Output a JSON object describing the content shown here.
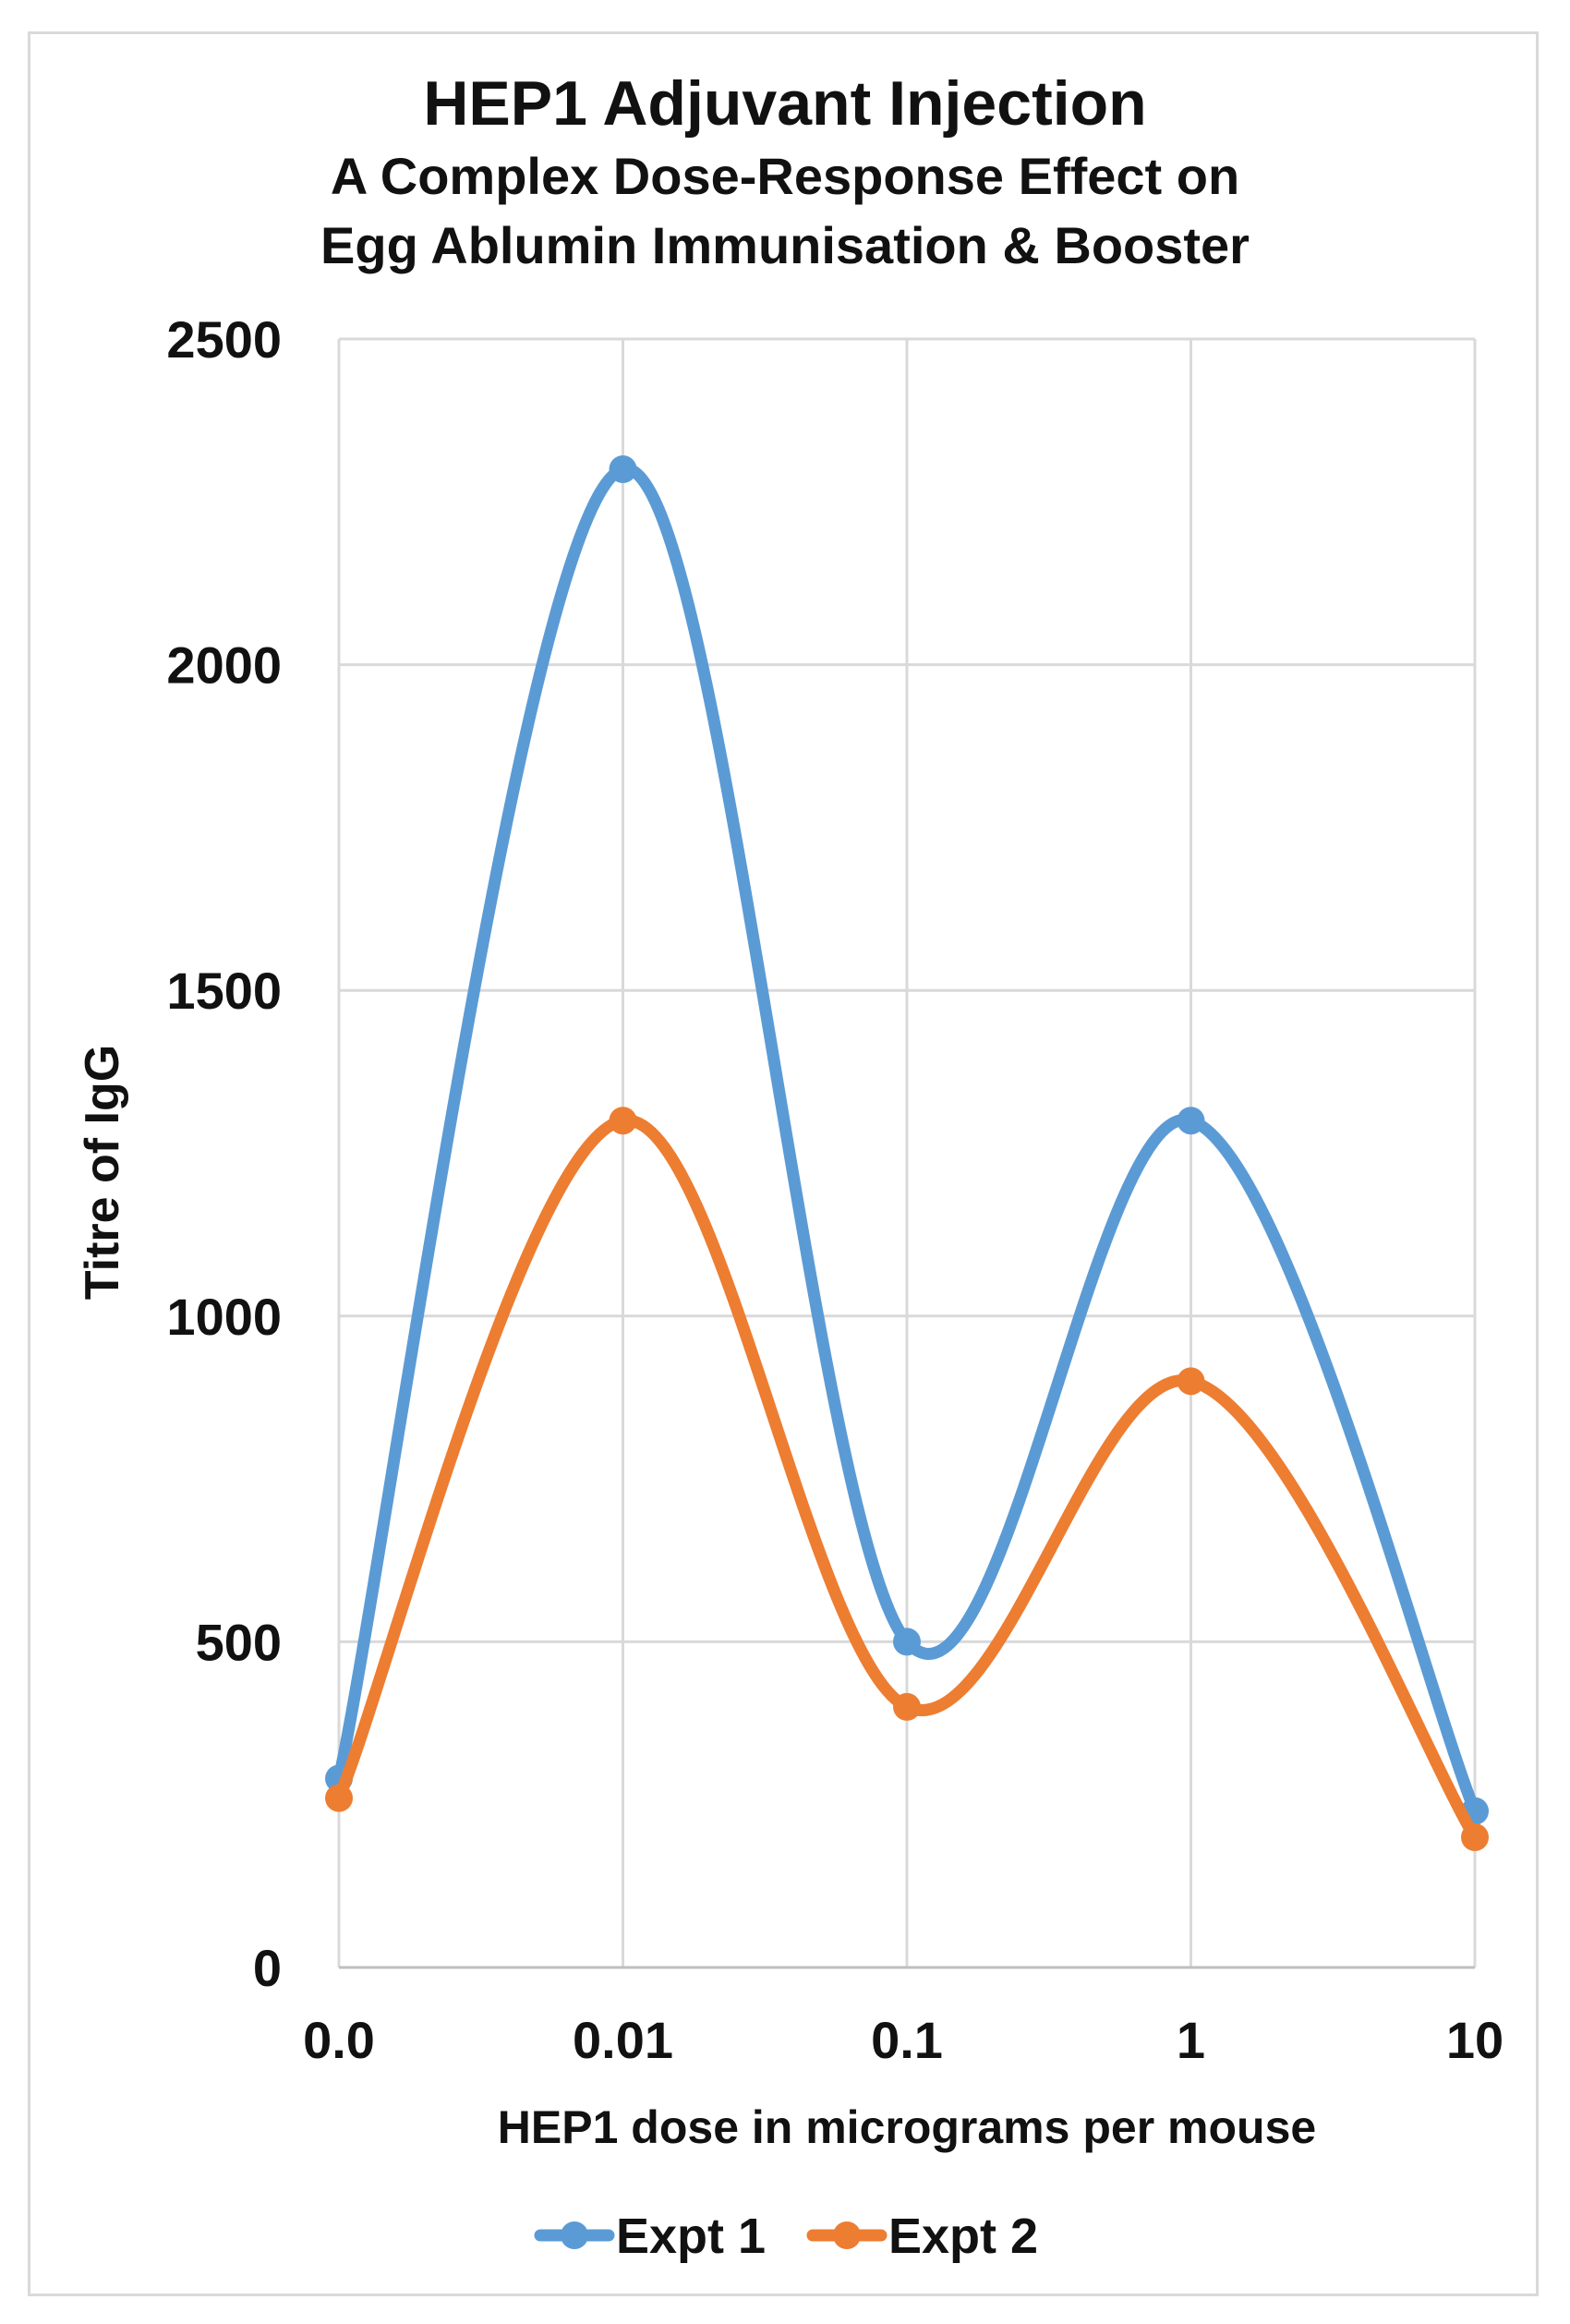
{
  "chart_data": {
    "type": "line",
    "title": "HEP1 Adjuvant Injection",
    "subtitle_lines": [
      "A Complex Dose-Response Effect on",
      "Egg Ablumin Immunisation & Booster"
    ],
    "xlabel": "HEP1 dose in micrograms per mouse",
    "ylabel": "Titre of IgG",
    "x_tick_labels": [
      "0.0",
      "0.01",
      "0.1",
      "1",
      "10"
    ],
    "y_ticks": [
      0,
      500,
      1000,
      1500,
      2000,
      2500
    ],
    "ylim": [
      0,
      2500
    ],
    "grid": true,
    "smooth": true,
    "legend_position": "bottom",
    "categories": [
      "0.0",
      "0.01",
      "0.1",
      "1",
      "10"
    ],
    "series": [
      {
        "name": "Expt 1",
        "color": "#5b9bd5",
        "values": [
          290,
          2300,
          500,
          1300,
          240
        ]
      },
      {
        "name": "Expt 2",
        "color": "#ed7d31",
        "values": [
          260,
          1300,
          400,
          900,
          200
        ]
      }
    ]
  }
}
